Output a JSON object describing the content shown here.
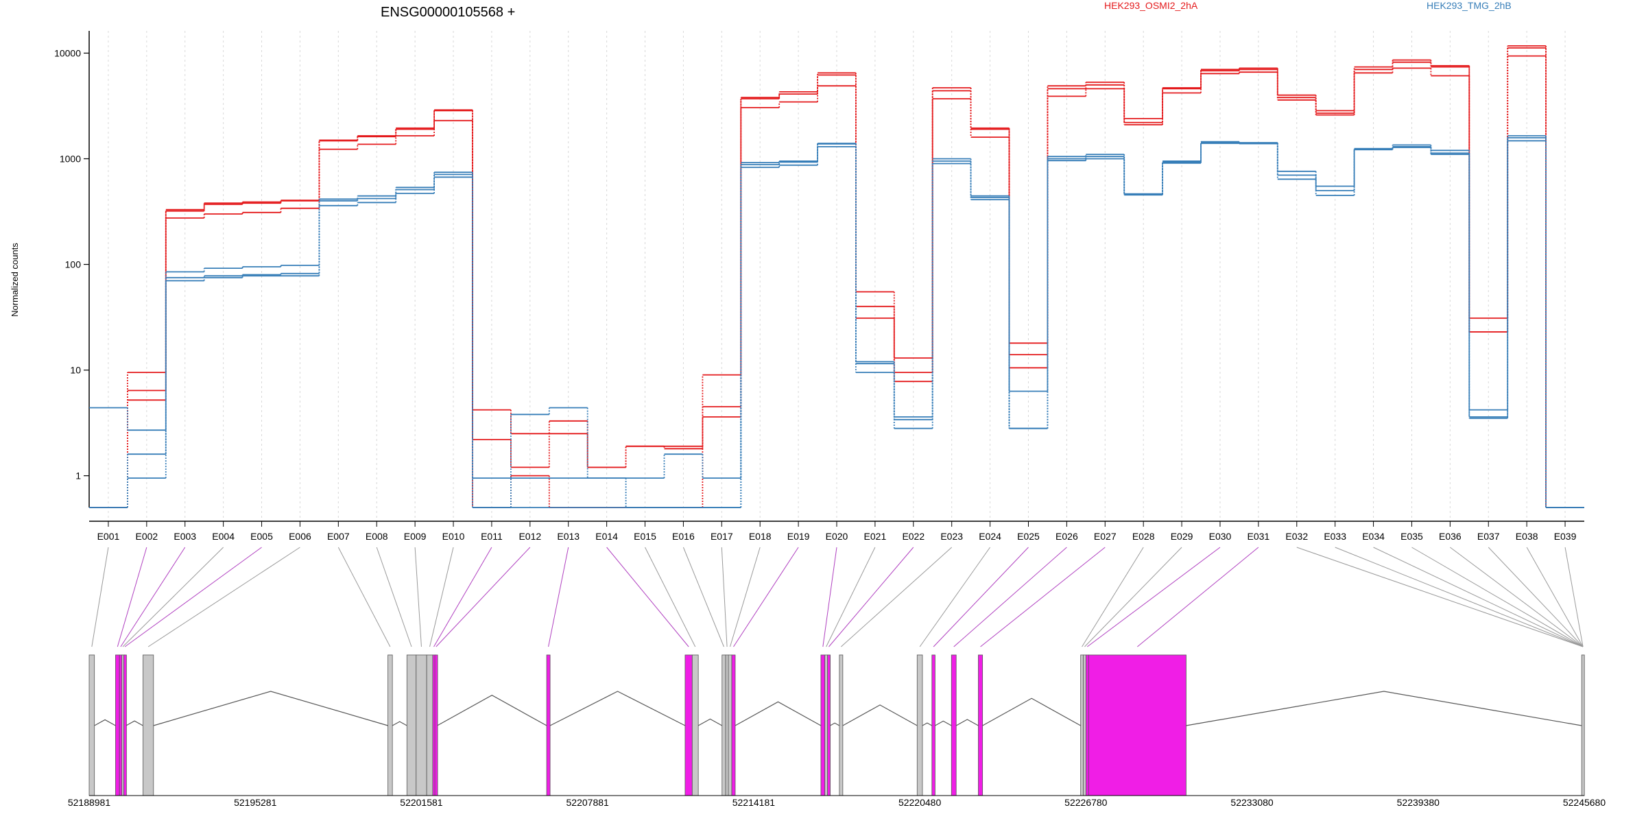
{
  "chart_data": {
    "type": "line",
    "title": "ENSG00000105568 +",
    "ylabel": "Normalized counts",
    "yscale": "log",
    "yticks": [
      1,
      10,
      100,
      1000,
      10000
    ],
    "ytick_labels": [
      "1",
      "10",
      "100",
      "1000",
      "10000"
    ],
    "ylim": [
      0.5,
      16000
    ],
    "legend": [
      {
        "name": "HEK293_OSMI2_2hA",
        "color": "#e41a1c",
        "placement": "top"
      },
      {
        "name": "HEK293_TMG_2hB",
        "color": "#377eb8",
        "placement": "top-right"
      }
    ],
    "categories": [
      "E001",
      "E002",
      "E003",
      "E004",
      "E005",
      "E006",
      "E007",
      "E008",
      "E009",
      "E010",
      "E011",
      "E012",
      "E013",
      "E014",
      "E015",
      "E016",
      "E017",
      "E018",
      "E019",
      "E020",
      "E021",
      "E022",
      "E023",
      "E024",
      "E025",
      "E026",
      "E027",
      "E028",
      "E029",
      "E030",
      "E031",
      "E032",
      "E033",
      "E034",
      "E035",
      "E036",
      "E037",
      "E038",
      "E039"
    ],
    "series": [
      {
        "group": "HEK293_OSMI2_2hA",
        "color": "#e41a1c",
        "values": [
          0.5,
          9.5,
          320,
          370,
          380,
          400,
          1500,
          1650,
          1950,
          2900,
          4.2,
          2.5,
          3.3,
          1.2,
          1.9,
          1.9,
          9,
          3800,
          4300,
          6500,
          55,
          13,
          4700,
          1950,
          18,
          4900,
          5300,
          2400,
          4700,
          7000,
          7200,
          4000,
          2850,
          7400,
          8600,
          7600,
          31,
          11700,
          0.5
        ]
      },
      {
        "group": "HEK293_OSMI2_2hA",
        "color": "#e41a1c",
        "values": [
          0.5,
          6.4,
          330,
          380,
          390,
          405,
          1480,
          1620,
          1900,
          2850,
          2.2,
          1.2,
          2.5,
          1.2,
          1.9,
          1.8,
          4.5,
          3700,
          4100,
          6200,
          40,
          9.5,
          4400,
          1900,
          14,
          4600,
          5000,
          2200,
          4600,
          6800,
          7000,
          3800,
          2700,
          7000,
          8200,
          7400,
          23,
          11200,
          0.5
        ]
      },
      {
        "group": "HEK293_OSMI2_2hA",
        "color": "#e41a1c",
        "values": [
          0.5,
          5.2,
          275,
          300,
          310,
          340,
          1230,
          1370,
          1650,
          2300,
          0.5,
          1.0,
          0.5,
          0.5,
          0.5,
          0.5,
          3.6,
          3050,
          3450,
          4900,
          31,
          7.8,
          3700,
          1600,
          10.5,
          3900,
          4600,
          2100,
          4200,
          6400,
          6600,
          3600,
          2600,
          6500,
          7200,
          6100,
          23,
          9400,
          0.5
        ]
      },
      {
        "group": "HEK293_TMG_2hB",
        "color": "#377eb8",
        "values": [
          4.4,
          2.7,
          85,
          92,
          95,
          98,
          415,
          445,
          535,
          745,
          0.95,
          3.8,
          4.4,
          0.95,
          0.95,
          1.6,
          0.95,
          920,
          950,
          1400,
          12,
          3.6,
          1000,
          445,
          6.3,
          1050,
          1100,
          465,
          950,
          1450,
          1420,
          760,
          550,
          1250,
          1350,
          1200,
          4.2,
          1650,
          0.5
        ]
      },
      {
        "group": "HEK293_TMG_2hB",
        "color": "#377eb8",
        "values": [
          0.5,
          1.6,
          75,
          78,
          80,
          82,
          400,
          420,
          510,
          710,
          0.5,
          0.95,
          0.95,
          0.95,
          0.5,
          0.5,
          0.5,
          880,
          930,
          1380,
          11.5,
          3.4,
          950,
          430,
          2.8,
          1000,
          1050,
          460,
          930,
          1420,
          1410,
          700,
          500,
          1230,
          1300,
          1130,
          3.6,
          1580,
          0.5
        ]
      },
      {
        "group": "HEK293_TMG_2hB",
        "color": "#377eb8",
        "values": [
          0.5,
          0.95,
          70,
          75,
          78,
          78,
          360,
          385,
          470,
          670,
          0.5,
          0.5,
          0.5,
          0.5,
          0.5,
          0.5,
          0.5,
          830,
          870,
          1300,
          9.5,
          2.8,
          900,
          410,
          2.8,
          960,
          1000,
          455,
          910,
          1400,
          1390,
          640,
          450,
          1220,
          1280,
          1100,
          3.5,
          1480,
          0.5
        ]
      }
    ],
    "gene_model": {
      "coordinate_ticks": [
        "52188981",
        "52195281",
        "52201581",
        "52207881",
        "52214181",
        "52220480",
        "52226780",
        "52233080",
        "52239380",
        "52245680"
      ],
      "start": 52188981,
      "end": 52245680,
      "exon_bins": [
        {
          "id": "E001",
          "start": 52188981,
          "end": 52189181,
          "significant": false
        },
        {
          "id": "E002",
          "start": 52189981,
          "end": 52190131,
          "significant": true
        },
        {
          "id": "E003",
          "start": 52190131,
          "end": 52190221,
          "significant": true
        },
        {
          "id": "E004",
          "start": 52190221,
          "end": 52190291,
          "significant": false
        },
        {
          "id": "E005",
          "start": 52190291,
          "end": 52190381,
          "significant": true
        },
        {
          "id": "E006",
          "start": 52191021,
          "end": 52191421,
          "significant": false
        },
        {
          "id": "E007",
          "start": 52200311,
          "end": 52200481,
          "significant": false
        },
        {
          "id": "E008",
          "start": 52201031,
          "end": 52201381,
          "significant": false
        },
        {
          "id": "E009",
          "start": 52201381,
          "end": 52201781,
          "significant": false
        },
        {
          "id": "E010",
          "start": 52201781,
          "end": 52202011,
          "significant": false
        },
        {
          "id": "E011",
          "start": 52202011,
          "end": 52202091,
          "significant": true
        },
        {
          "id": "E012",
          "start": 52202091,
          "end": 52202181,
          "significant": true
        },
        {
          "id": "E013",
          "start": 52206331,
          "end": 52206461,
          "significant": true
        },
        {
          "id": "E014",
          "start": 52211581,
          "end": 52211851,
          "significant": true
        },
        {
          "id": "E015",
          "start": 52211851,
          "end": 52212081,
          "significant": false
        },
        {
          "id": "E016",
          "start": 52212981,
          "end": 52213121,
          "significant": false
        },
        {
          "id": "E017",
          "start": 52213121,
          "end": 52213221,
          "significant": false
        },
        {
          "id": "E018",
          "start": 52213221,
          "end": 52213351,
          "significant": false
        },
        {
          "id": "E019",
          "start": 52213351,
          "end": 52213481,
          "significant": true
        },
        {
          "id": "E020",
          "start": 52216731,
          "end": 52216881,
          "significant": true
        },
        {
          "id": "E021",
          "start": 52216881,
          "end": 52216981,
          "significant": false
        },
        {
          "id": "E022",
          "start": 52216981,
          "end": 52217081,
          "significant": true
        },
        {
          "id": "E023",
          "start": 52217431,
          "end": 52217561,
          "significant": false
        },
        {
          "id": "E024",
          "start": 52220381,
          "end": 52220581,
          "significant": false
        },
        {
          "id": "E025",
          "start": 52220941,
          "end": 52221061,
          "significant": true
        },
        {
          "id": "E026",
          "start": 52221681,
          "end": 52221861,
          "significant": true
        },
        {
          "id": "E027",
          "start": 52222701,
          "end": 52222861,
          "significant": true
        },
        {
          "id": "E028",
          "start": 52226581,
          "end": 52226681,
          "significant": false
        },
        {
          "id": "E029",
          "start": 52226681,
          "end": 52226781,
          "significant": false
        },
        {
          "id": "E030",
          "start": 52226781,
          "end": 52226881,
          "significant": true
        },
        {
          "id": "E031",
          "start": 52226881,
          "end": 52230581,
          "significant": true
        },
        {
          "id": "E032",
          "start": 52245581,
          "end": 52245680,
          "significant": false
        }
      ],
      "trailing_bins": 7
    }
  }
}
